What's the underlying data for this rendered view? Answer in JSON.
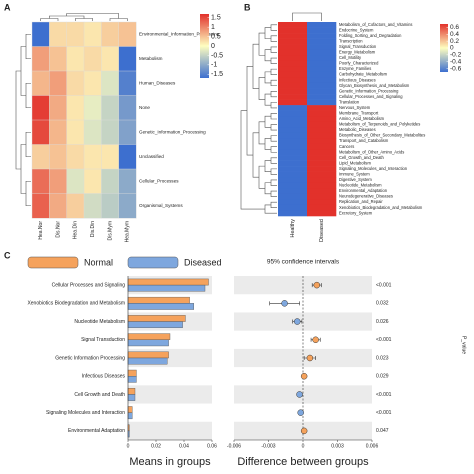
{
  "chart_data": [
    {
      "type": "heatmap",
      "panel_label": "A",
      "rows": [
        "Environmental_Information_Processing",
        "Metabolism",
        "Human_Diseases",
        "None",
        "Genetic_Information_Processing",
        "Unclassified",
        "Cellular_Processes",
        "Organismal_Systems"
      ],
      "columns": [
        "Hea.Nor",
        "Dis.Nor",
        "Hea.Din",
        "Dis.Din",
        "Dis.Mym",
        "Hea.Mym"
      ],
      "values": [
        [
          -1.7,
          0.3,
          0.3,
          0.2,
          0.4,
          0.5
        ],
        [
          0.8,
          0.5,
          0.2,
          0.3,
          0.2,
          -1.8
        ],
        [
          0.6,
          0.8,
          0.3,
          0.2,
          -0.3,
          -1.5
        ],
        [
          1.6,
          0.7,
          0.2,
          -0.2,
          -0.5,
          -1.2
        ],
        [
          1.5,
          0.6,
          0.2,
          -0.3,
          -0.5,
          -1.1
        ],
        [
          0.4,
          0.5,
          0.3,
          0.2,
          0.2,
          -1.8
        ],
        [
          1.2,
          0.8,
          -0.3,
          0.2,
          -0.5,
          -1.0
        ],
        [
          1.3,
          0.7,
          0.4,
          -0.4,
          -0.6,
          -1.0
        ]
      ],
      "clim": [
        -1.7,
        1.7
      ],
      "cticks": [
        1.5,
        1,
        0.5,
        0,
        -0.5,
        -1,
        -1.5
      ],
      "colors": [
        "#3d6fcf",
        "#fefec0",
        "#e2312b"
      ]
    },
    {
      "type": "heatmap",
      "panel_label": "B",
      "rows": [
        "Metabolism_of_Cofactors_and_Vitamins",
        "Endocrine_System",
        "Folding_Sorting_and_Degradation",
        "Transcription",
        "Signal_Transduction",
        "Energy_Metabolism",
        "Cell_Motility",
        "Poorly_Characterized",
        "Enzyme_Families",
        "Carbohydrate_Metabolism",
        "Infectious_Diseases",
        "Glycan_Biosynthesis_and_Metabolism",
        "Genetic_Information_Processing",
        "Cellular_Processes_and_Signaling",
        "Translation",
        "Nervous_System",
        "Membrane_Transport",
        "Amino_Acid_Metabolism",
        "Metabolism_of_Terpenoids_and_Polyketides",
        "Metabolic_Diseases",
        "Biosynthesis_of_Other_Secondary_Metabolites",
        "Transport_and_Catabolism",
        "Cancers",
        "Metabolism_of_Other_Amino_Acids",
        "Cell_Growth_and_Death",
        "Lipid_Metabolism",
        "Signaling_Molecules_and_Interaction",
        "Immune_System",
        "Digestive_System",
        "Nucleotide_Metabolism",
        "Environmental_Adaptation",
        "Neurodegenerative_Diseases",
        "Replication_and_Repair",
        "Xenobiotics_Biodegradation_and_Metabolism",
        "Excretory_System"
      ],
      "columns": [
        "Healthy",
        "Diseased"
      ],
      "values": [
        [
          0.7,
          -0.7
        ],
        [
          0.7,
          -0.7
        ],
        [
          0.7,
          -0.7
        ],
        [
          0.7,
          -0.7
        ],
        [
          0.7,
          -0.7
        ],
        [
          0.7,
          -0.7
        ],
        [
          0.7,
          -0.7
        ],
        [
          0.7,
          -0.7
        ],
        [
          0.7,
          -0.7
        ],
        [
          0.7,
          -0.7
        ],
        [
          0.7,
          -0.7
        ],
        [
          0.7,
          -0.7
        ],
        [
          0.7,
          -0.7
        ],
        [
          0.7,
          -0.7
        ],
        [
          0.7,
          -0.7
        ],
        [
          -0.7,
          0.7
        ],
        [
          -0.7,
          0.7
        ],
        [
          -0.7,
          0.7
        ],
        [
          -0.7,
          0.7
        ],
        [
          -0.7,
          0.7
        ],
        [
          -0.7,
          0.7
        ],
        [
          -0.7,
          0.7
        ],
        [
          -0.7,
          0.7
        ],
        [
          -0.7,
          0.7
        ],
        [
          -0.7,
          0.7
        ],
        [
          -0.7,
          0.7
        ],
        [
          -0.7,
          0.7
        ],
        [
          -0.7,
          0.7
        ],
        [
          -0.7,
          0.7
        ],
        [
          -0.7,
          0.7
        ],
        [
          -0.7,
          0.7
        ],
        [
          -0.7,
          0.7
        ],
        [
          -0.7,
          0.7
        ],
        [
          -0.7,
          0.7
        ],
        [
          -0.7,
          0.7
        ]
      ],
      "clim": [
        -0.7,
        0.7
      ],
      "cticks": [
        0.6,
        0.4,
        0.2,
        0,
        -0.2,
        -0.4,
        -0.6
      ],
      "colors": [
        "#3d6fcf",
        "#fefec0",
        "#e2312b"
      ]
    },
    {
      "type": "bar",
      "panel_label": "C",
      "orientation": "horizontal",
      "categories": [
        "Cellular Processes and Signaling",
        "Xenobiotics Biodegradation and Metabolism",
        "Nucleotide Metabolism",
        "Signal Transduction",
        "Genetic Information Processing",
        "Infectious Diseases",
        "Cell Growth and Death",
        "Signaling Molecules and Interaction",
        "Environmental Adaptation"
      ],
      "series": [
        {
          "name": "Normal",
          "color": "#f5a25c",
          "values": [
            0.0575,
            0.044,
            0.041,
            0.03,
            0.029,
            0.006,
            0.005,
            0.003,
            0.001
          ]
        },
        {
          "name": "Diseased",
          "color": "#7ea7de",
          "values": [
            0.055,
            0.047,
            0.039,
            0.029,
            0.028,
            0.006,
            0.005,
            0.003,
            0.001
          ]
        }
      ],
      "xlim": [
        0,
        0.06
      ],
      "xticks": [
        0,
        0.02,
        0.04,
        0.06
      ],
      "xlabel": "Means in groups"
    },
    {
      "type": "errorbar",
      "title": "95% confidence intervals",
      "values": [
        0.0012,
        -0.0016,
        -0.0005,
        0.0011,
        0.0006,
        0.0001,
        -0.0003,
        -0.0002,
        0.0001
      ],
      "errors": [
        0.0004,
        0.0013,
        0.0004,
        0.0004,
        0.0005,
        0.0001,
        0.0002,
        0.0001,
        5e-05
      ],
      "p_values": [
        "<0.001",
        "0.032",
        "0.026",
        "<0.001",
        "0.023",
        "0.029",
        "<0.001",
        "<0.001",
        "0.047"
      ],
      "p_label": "P_value",
      "positive_color": "#f5a25c",
      "negative_color": "#7ea7de",
      "reference_line": 0,
      "xlim": [
        -0.006,
        0.006
      ],
      "xticks": [
        -0.006,
        -0.003,
        0,
        0.003,
        0.006
      ],
      "xlabel": "Difference between groups"
    }
  ]
}
